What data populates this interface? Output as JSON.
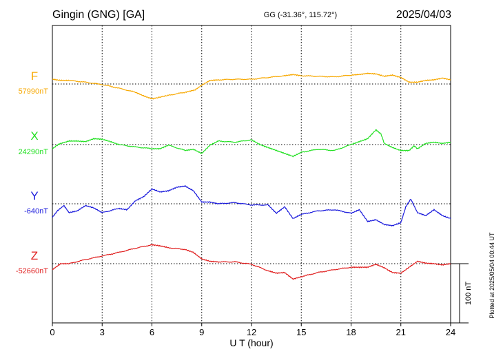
{
  "header": {
    "station": "Gingin (GNG)  [GA]",
    "coords": "GG (-31.36°, 115.72°)",
    "date": "2025/04/03"
  },
  "footer": {
    "plotted": "Plotted at 2025/05/04 00:44 UT",
    "scale": "100 nT"
  },
  "chart_data": {
    "type": "line",
    "xlabel": "U T (hour)",
    "xlim": [
      0,
      24
    ],
    "xticks": [
      0,
      3,
      6,
      9,
      12,
      15,
      18,
      21,
      24
    ],
    "scale_bar_nT": 100,
    "grid": true,
    "series": [
      {
        "name": "F",
        "baseline_label": "57990nT",
        "baseline": 57990,
        "color": "#f7a800",
        "x": [
          0,
          0.5,
          1,
          2,
          3,
          4,
          5,
          5.5,
          6,
          6.2,
          7,
          8,
          8.6,
          9,
          9.5,
          10,
          11,
          12,
          13,
          14,
          14.5,
          15,
          16,
          17,
          18,
          18.5,
          19,
          19.5,
          20,
          20.5,
          21,
          21.5,
          22,
          22.5,
          23,
          23.5,
          24
        ],
        "y": [
          57998,
          57996,
          57996,
          57993,
          57989,
          57983,
          57976,
          57970,
          57965,
          57966,
          57971,
          57976,
          57980,
          57988,
          57996,
          57997,
          57998,
          57998,
          58001,
          58004,
          58006,
          58004,
          58003,
          58002,
          58005,
          58006,
          58008,
          58007,
          58003,
          58005,
          58001,
          57993,
          57993,
          57996,
          57997,
          58000,
          57997
        ]
      },
      {
        "name": "X",
        "baseline_label": "24290nT",
        "baseline": 24290,
        "color": "#22e022",
        "x": [
          0,
          0.4,
          1,
          1.5,
          2,
          2.5,
          3,
          3.5,
          4,
          5,
          6,
          6.5,
          7,
          8,
          8.5,
          9,
          9.5,
          10,
          11,
          12,
          12.5,
          13,
          13.5,
          14,
          14.5,
          15,
          16,
          17,
          18,
          18.5,
          19,
          19.5,
          19.8,
          20,
          20.5,
          21,
          21.5,
          21.8,
          22,
          22.5,
          23,
          23.5,
          24
        ],
        "y": [
          24283,
          24291,
          24296,
          24296,
          24295,
          24300,
          24299,
          24295,
          24290,
          24286,
          24283,
          24283,
          24289,
          24280,
          24282,
          24275,
          24289,
          24296,
          24294,
          24298,
          24290,
          24285,
          24280,
          24275,
          24270,
          24277,
          24282,
          24280,
          24290,
          24295,
          24300,
          24315,
          24308,
          24292,
          24285,
          24280,
          24280,
          24288,
          24283,
          24292,
          24294,
          24292,
          24294
        ]
      },
      {
        "name": "Y",
        "baseline_label": "-640nT",
        "baseline": -640,
        "color": "#1a1adc",
        "x": [
          0,
          0.3,
          0.7,
          1,
          1.5,
          2,
          2.5,
          3,
          4,
          4.5,
          5,
          5.5,
          6,
          6.5,
          7,
          7.5,
          8,
          8.5,
          9,
          9.5,
          10,
          11,
          12,
          13,
          13.5,
          14,
          14.5,
          15,
          16,
          17,
          18,
          18.5,
          19,
          19.5,
          20,
          20.5,
          21,
          21.3,
          21.6,
          22,
          22.5,
          23,
          23.5,
          24
        ],
        "y": [
          -663,
          -652,
          -643,
          -655,
          -652,
          -643,
          -647,
          -655,
          -648,
          -650,
          -635,
          -628,
          -615,
          -620,
          -618,
          -612,
          -610,
          -618,
          -637,
          -637,
          -640,
          -638,
          -642,
          -642,
          -656,
          -645,
          -665,
          -658,
          -652,
          -650,
          -656,
          -650,
          -670,
          -667,
          -675,
          -677,
          -672,
          -645,
          -632,
          -655,
          -660,
          -650,
          -660,
          -665
        ]
      },
      {
        "name": "Z",
        "baseline_label": "-52660nT",
        "baseline": -52660,
        "color": "#e02020",
        "x": [
          0,
          0.5,
          1,
          2,
          3,
          4,
          5,
          6,
          6.5,
          7,
          8,
          8.5,
          9,
          9.5,
          10,
          11,
          12,
          13,
          13.5,
          14,
          14.5,
          15,
          16,
          17,
          18,
          18.5,
          19,
          19.5,
          20,
          20.5,
          21,
          21.5,
          22,
          22.5,
          23,
          23.5,
          24
        ],
        "y": [
          -52670,
          -52660,
          -52660,
          -52653,
          -52647,
          -52641,
          -52634,
          -52628,
          -52630,
          -52633,
          -52636,
          -52641,
          -52652,
          -52656,
          -52657,
          -52657,
          -52661,
          -52672,
          -52676,
          -52675,
          -52686,
          -52682,
          -52675,
          -52670,
          -52666,
          -52666,
          -52666,
          -52661,
          -52667,
          -52675,
          -52676,
          -52666,
          -52656,
          -52659,
          -52660,
          -52662,
          -52660
        ]
      }
    ]
  }
}
